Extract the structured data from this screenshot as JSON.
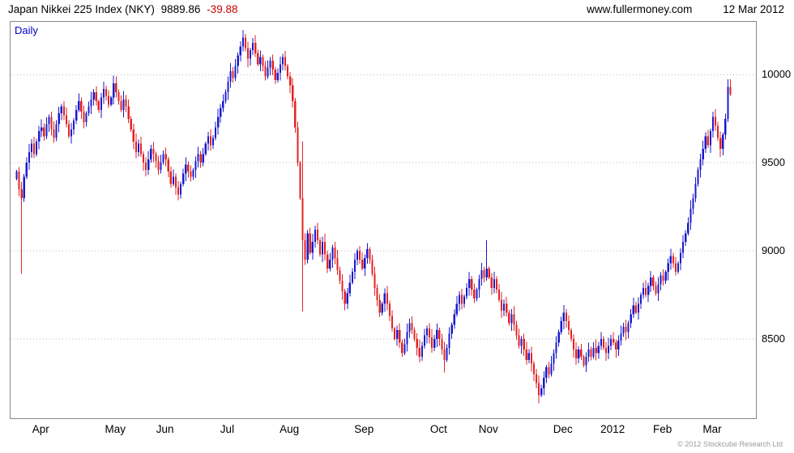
{
  "header": {
    "title": "Japan Nikkei 225 Index (NKY)",
    "last_price": "9889.86",
    "change": "-39.88",
    "website": "www.fullermoney.com",
    "date": "12 Mar 2012"
  },
  "chart": {
    "frequency_label": "Daily",
    "copyright": "© 2012 Stockcube Research Ltd",
    "colors": {
      "up": "#1a1acd",
      "down": "#e32222",
      "grid": "#bbbbbb",
      "border": "#888888",
      "daily_label": "#0000cc",
      "change_text": "#cc0000"
    }
  },
  "chart_data": {
    "type": "candlestick",
    "title": "Japan Nikkei 225 Index (NKY)",
    "frequency": "Daily",
    "last_close": 9889.86,
    "change": -39.88,
    "y_axis": {
      "side": "right",
      "ticks": [
        8500,
        9000,
        9500,
        10000
      ],
      "range_min": 8050,
      "range_max": 10300,
      "grid": "dotted"
    },
    "x_axis": {
      "labels": [
        "Apr",
        "May",
        "Jun",
        "Jul",
        "Aug",
        "Sep",
        "Oct",
        "Nov",
        "Dec",
        "2012",
        "Feb",
        "Mar"
      ],
      "label_indices": [
        10,
        40,
        60,
        85,
        110,
        140,
        170,
        190,
        220,
        240,
        260,
        280
      ]
    },
    "open_rule": "previous_close",
    "closes": [
      9450,
      9350,
      9300,
      9420,
      9500,
      9560,
      9610,
      9550,
      9620,
      9680,
      9700,
      9650,
      9720,
      9760,
      9690,
      9640,
      9720,
      9780,
      9820,
      9770,
      9720,
      9650,
      9690,
      9740,
      9800,
      9850,
      9790,
      9730,
      9780,
      9820,
      9860,
      9900,
      9850,
      9800,
      9870,
      9920,
      9880,
      9830,
      9870,
      9950,
      9900,
      9850,
      9800,
      9860,
      9820,
      9750,
      9690,
      9620,
      9560,
      9610,
      9550,
      9500,
      9460,
      9520,
      9580,
      9550,
      9510,
      9460,
      9500,
      9550,
      9520,
      9450,
      9380,
      9420,
      9360,
      9320,
      9380,
      9440,
      9490,
      9450,
      9420,
      9460,
      9510,
      9550,
      9500,
      9550,
      9610,
      9650,
      9600,
      9640,
      9700,
      9760,
      9810,
      9850,
      9900,
      9960,
      10020,
      9980,
      10050,
      10110,
      10160,
      10210,
      10150,
      10090,
      10140,
      10180,
      10120,
      10060,
      10100,
      10050,
      9990,
      10040,
      10080,
      10030,
      9970,
      10010,
      10060,
      10100,
      10050,
      9990,
      9940,
      9850,
      9700,
      9500,
      9300,
      9060,
      8950,
      9100,
      8990,
      9050,
      9120,
      9060,
      8980,
      9050,
      8980,
      8900,
      8950,
      9020,
      8960,
      8890,
      8830,
      8770,
      8700,
      8760,
      8820,
      8880,
      8950,
      9000,
      8950,
      8900,
      8960,
      9010,
      8950,
      8870,
      8790,
      8720,
      8650,
      8700,
      8760,
      8700,
      8630,
      8560,
      8500,
      8550,
      8480,
      8420,
      8470,
      8540,
      8590,
      8550,
      8500,
      8450,
      8400,
      8460,
      8520,
      8560,
      8510,
      8450,
      8500,
      8550,
      8500,
      8440,
      8380,
      8450,
      8530,
      8580,
      8640,
      8700,
      8750,
      8700,
      8740,
      8790,
      8840,
      8780,
      8730,
      8780,
      8840,
      8890,
      8850,
      8900,
      8850,
      8790,
      8840,
      8780,
      8720,
      8660,
      8700,
      8650,
      8590,
      8640,
      8580,
      8520,
      8460,
      8500,
      8440,
      8380,
      8420,
      8360,
      8300,
      8250,
      8180,
      8220,
      8280,
      8340,
      8300,
      8360,
      8420,
      8480,
      8540,
      8600,
      8650,
      8600,
      8550,
      8500,
      8440,
      8390,
      8440,
      8400,
      8350,
      8400,
      8440,
      8400,
      8450,
      8420,
      8460,
      8500,
      8450,
      8420,
      8460,
      8500,
      8480,
      8440,
      8490,
      8530,
      8570,
      8540,
      8590,
      8640,
      8690,
      8650,
      8700,
      8750,
      8790,
      8750,
      8800,
      8850,
      8800,
      8760,
      8810,
      8860,
      8830,
      8880,
      8930,
      8970,
      8930,
      8880,
      8930,
      8990,
      9050,
      9100,
      9160,
      9240,
      9300,
      9380,
      9460,
      9520,
      9580,
      9650,
      9600,
      9680,
      9760,
      9710,
      9640,
      9580,
      9660,
      9750,
      9929.74,
      9889.86
    ],
    "wick_overrides": {
      "2": {
        "low": 8870
      },
      "39": {
        "high": 9995
      },
      "91": {
        "high": 10255
      },
      "115": {
        "high": 9620,
        "low": 8655
      },
      "172": {
        "low": 8310
      },
      "189": {
        "high": 9060
      },
      "210": {
        "low": 8135
      },
      "287": {
        "high": 9975
      }
    }
  }
}
